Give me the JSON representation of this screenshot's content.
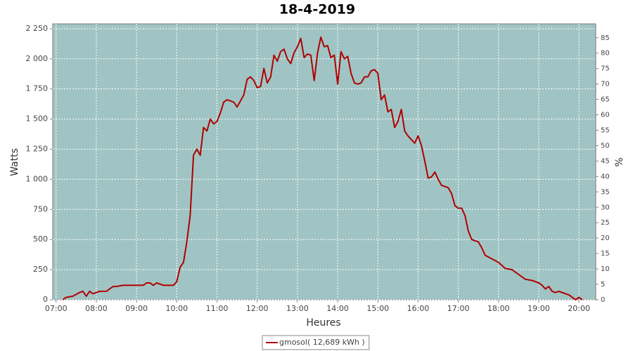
{
  "chart_data": {
    "type": "line",
    "title": "18-4-2019",
    "x_label": "Heures",
    "y_label": "Watts",
    "y2_label": "%",
    "xlim": [
      "06:55",
      "20:25"
    ],
    "xticks": [
      "07:00",
      "08:00",
      "09:00",
      "10:00",
      "11:00",
      "12:00",
      "13:00",
      "14:00",
      "15:00",
      "16:00",
      "17:00",
      "18:00",
      "19:00",
      "20:00"
    ],
    "ylim": [
      0,
      2290
    ],
    "yticks": [
      0,
      250,
      500,
      750,
      {
        "value": 1000,
        "label": "1 000"
      },
      {
        "value": 1250,
        "label": "1 250"
      },
      {
        "value": 1500,
        "label": "1 500"
      },
      {
        "value": 1750,
        "label": "1 750"
      },
      {
        "value": 2000,
        "label": "2 000"
      },
      {
        "value": 2250,
        "label": "2 250"
      }
    ],
    "y2lim": [
      0,
      89.5
    ],
    "y2ticks": [
      0,
      5,
      10,
      15,
      20,
      25,
      30,
      35,
      40,
      45,
      50,
      55,
      60,
      65,
      70,
      75,
      80,
      85
    ],
    "grid": true,
    "background": "#a0c4c4",
    "series": [
      {
        "name": "gmosol( 12,689 kWh )",
        "color": "#b00000",
        "x": [
          "07:10",
          "07:15",
          "07:25",
          "07:35",
          "07:40",
          "07:45",
          "07:50",
          "07:55",
          "08:05",
          "08:15",
          "08:25",
          "08:30",
          "08:40",
          "08:50",
          "09:00",
          "09:10",
          "09:15",
          "09:20",
          "09:25",
          "09:30",
          "09:40",
          "09:50",
          "09:55",
          "10:00",
          "10:05",
          "10:10",
          "10:15",
          "10:20",
          "10:25",
          "10:30",
          "10:35",
          "10:40",
          "10:45",
          "10:50",
          "10:55",
          "11:00",
          "11:05",
          "11:10",
          "11:15",
          "11:20",
          "11:25",
          "11:30",
          "11:40",
          "11:45",
          "11:50",
          "11:55",
          "12:00",
          "12:05",
          "12:10",
          "12:15",
          "12:20",
          "12:25",
          "12:30",
          "12:35",
          "12:40",
          "12:45",
          "12:50",
          "12:55",
          "13:00",
          "13:05",
          "13:10",
          "13:15",
          "13:20",
          "13:25",
          "13:30",
          "13:35",
          "13:40",
          "13:45",
          "13:50",
          "13:55",
          "14:00",
          "14:05",
          "14:10",
          "14:15",
          "14:20",
          "14:25",
          "14:30",
          "14:35",
          "14:40",
          "14:45",
          "14:50",
          "14:55",
          "15:00",
          "15:05",
          "15:10",
          "15:15",
          "15:20",
          "15:25",
          "15:30",
          "15:35",
          "15:40",
          "15:45",
          "15:50",
          "15:55",
          "16:00",
          "16:05",
          "16:10",
          "16:15",
          "16:20",
          "16:25",
          "16:30",
          "16:35",
          "16:40",
          "16:45",
          "16:50",
          "16:55",
          "17:00",
          "17:05",
          "17:10",
          "17:15",
          "17:20",
          "17:25",
          "17:30",
          "17:35",
          "17:40",
          "17:50",
          "18:00",
          "18:10",
          "18:20",
          "18:30",
          "18:40",
          "18:50",
          "19:00",
          "19:05",
          "19:10",
          "19:15",
          "19:20",
          "19:25",
          "19:30",
          "19:40",
          "19:45",
          "19:50",
          "19:55",
          "20:00",
          "20:05"
        ],
        "values": [
          0,
          20,
          30,
          60,
          70,
          30,
          70,
          50,
          70,
          70,
          110,
          110,
          120,
          120,
          120,
          120,
          140,
          140,
          120,
          140,
          120,
          120,
          120,
          150,
          270,
          310,
          480,
          700,
          1200,
          1250,
          1200,
          1430,
          1400,
          1500,
          1460,
          1480,
          1550,
          1640,
          1660,
          1650,
          1640,
          1600,
          1700,
          1830,
          1850,
          1820,
          1760,
          1770,
          1920,
          1800,
          1850,
          2030,
          1980,
          2060,
          2080,
          2000,
          1960,
          2050,
          2100,
          2170,
          2010,
          2040,
          2030,
          1820,
          2050,
          2180,
          2100,
          2110,
          2010,
          2030,
          1790,
          2060,
          2000,
          2020,
          1880,
          1800,
          1790,
          1800,
          1850,
          1850,
          1900,
          1910,
          1880,
          1660,
          1700,
          1560,
          1580,
          1430,
          1480,
          1580,
          1400,
          1360,
          1330,
          1300,
          1360,
          1280,
          1150,
          1010,
          1020,
          1060,
          1000,
          950,
          940,
          930,
          880,
          780,
          760,
          760,
          700,
          570,
          500,
          490,
          480,
          430,
          370,
          340,
          310,
          260,
          250,
          210,
          170,
          160,
          140,
          120,
          90,
          110,
          70,
          60,
          70,
          50,
          40,
          20,
          0,
          20,
          0
        ]
      }
    ],
    "legend": "bottom"
  }
}
